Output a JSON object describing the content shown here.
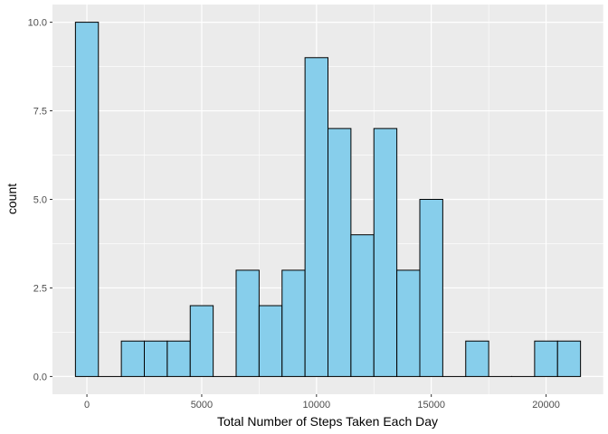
{
  "chart_data": {
    "type": "bar",
    "subtype": "histogram",
    "xlabel": "Total Number of Steps Taken Each Day",
    "ylabel": "count",
    "bin_width": 1000,
    "bin_centers": [
      0,
      1000,
      2000,
      3000,
      4000,
      5000,
      6000,
      7000,
      8000,
      9000,
      10000,
      11000,
      12000,
      13000,
      14000,
      15000,
      16000,
      17000,
      18000,
      19000,
      20000,
      21000
    ],
    "counts": [
      10,
      0,
      1,
      1,
      1,
      2,
      0,
      3,
      2,
      3,
      9,
      7,
      4,
      7,
      3,
      5,
      0,
      1,
      0,
      0,
      1,
      1
    ],
    "xlim": [
      -1500,
      22500
    ],
    "ylim": [
      -0.5,
      10.5
    ],
    "x_ticks": [
      0,
      5000,
      10000,
      15000,
      20000
    ],
    "x_tick_labels": [
      "0",
      "5000",
      "10000",
      "15000",
      "20000"
    ],
    "y_ticks": [
      0,
      2.5,
      5,
      7.5,
      10
    ],
    "y_tick_labels": [
      "0.0",
      "2.5",
      "5.0",
      "7.5",
      "10.0"
    ],
    "grid": true,
    "colors": {
      "bar_fill": "#87CEEB",
      "bar_stroke": "#000000",
      "panel_bg": "#EBEBEB",
      "grid_major": "#FFFFFF",
      "tick_text": "#4D4D4D"
    }
  }
}
